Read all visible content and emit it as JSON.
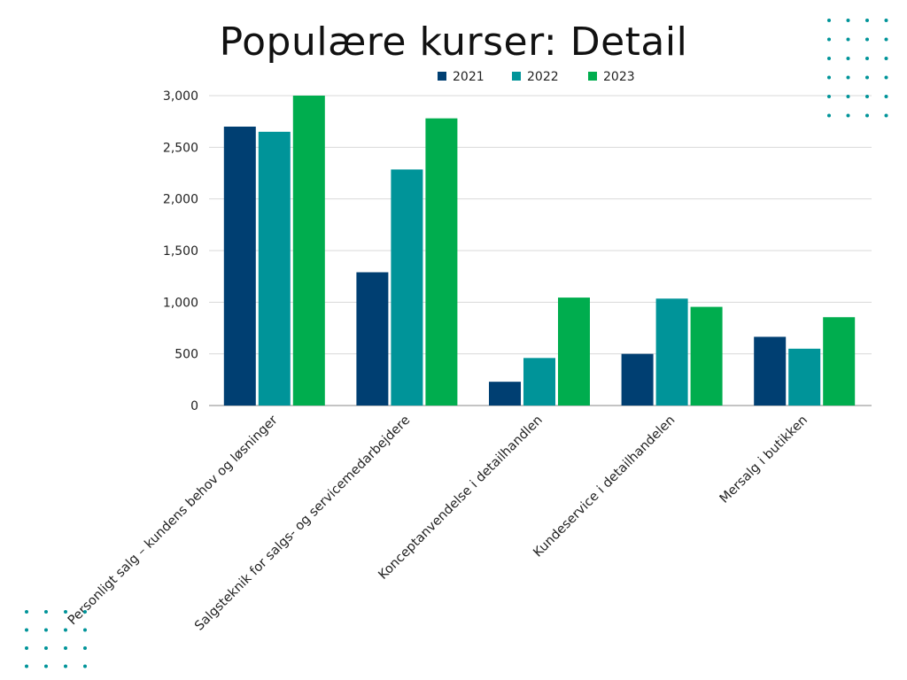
{
  "chart_data": {
    "type": "bar",
    "title": "Populære kurser: Detail",
    "categories": [
      "Personligt salg – kundens behov og løsninger",
      "Salgsteknik for salgs- og servicemedarbejdere",
      "Konceptanvendelse i detailhandlen",
      "Kundeservice i detailhandelen",
      "Mersalg i butikken"
    ],
    "series": [
      {
        "name": "2021",
        "color": "#003f72",
        "values": [
          2700,
          1290,
          230,
          500,
          665
        ]
      },
      {
        "name": "2022",
        "color": "#009499",
        "values": [
          2650,
          2285,
          460,
          1035,
          550
        ]
      },
      {
        "name": "2023",
        "color": "#00ad4e",
        "values": [
          3000,
          2780,
          1045,
          955,
          855
        ]
      }
    ],
    "ylim": [
      0,
      3000
    ],
    "yticks": [
      0,
      500,
      1000,
      1500,
      2000,
      2500,
      3000
    ],
    "ytick_labels": [
      "0",
      "500",
      "1,000",
      "1,500",
      "2,000",
      "2,500",
      "3,000"
    ],
    "grid": true,
    "legend_position": "top-center",
    "xlabel": "",
    "ylabel": ""
  },
  "decoration": {
    "dot_color": "#009499"
  }
}
